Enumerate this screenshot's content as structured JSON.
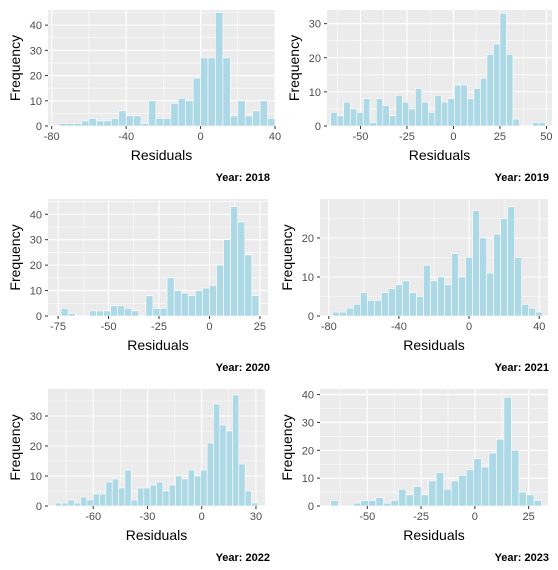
{
  "chart_data": [
    {
      "type": "bar",
      "caption": "Year: 2018",
      "xlabel": "Residuals",
      "ylabel": "Frequency",
      "xlim": [
        -82,
        40
      ],
      "ylim": [
        0,
        46
      ],
      "xticks": [
        -80,
        -40,
        0,
        40
      ],
      "yticks": [
        0,
        10,
        20,
        30,
        40
      ],
      "bin_width": 4,
      "bins_start": [
        -80,
        -76,
        -72,
        -68,
        -64,
        -60,
        -56,
        -52,
        -48,
        -44,
        -40,
        -36,
        -32,
        -28,
        -24,
        -20,
        -16,
        -12,
        -8,
        -4,
        0,
        4,
        8,
        12,
        16,
        20,
        24,
        28,
        32,
        36
      ],
      "values": [
        0,
        1,
        1,
        1,
        2,
        3,
        2,
        2,
        3,
        6,
        4,
        4,
        1,
        10,
        3,
        3,
        9,
        11,
        10,
        19,
        27,
        27,
        45,
        27,
        4,
        10,
        4,
        6,
        10,
        3
      ]
    },
    {
      "type": "bar",
      "caption": "Year: 2019",
      "xlabel": "Residuals",
      "ylabel": "Frequency",
      "xlim": [
        -68,
        53
      ],
      "ylim": [
        0,
        34
      ],
      "xticks": [
        -50,
        -25,
        0,
        25,
        50
      ],
      "yticks": [
        0,
        10,
        20,
        30
      ],
      "bin_width": 3.5,
      "bins_start": [
        -66,
        -62.5,
        -59,
        -55.5,
        -52,
        -48.5,
        -45,
        -41.5,
        -38,
        -34.5,
        -31,
        -27.5,
        -24,
        -20.5,
        -17,
        -13.5,
        -10,
        -6.5,
        -3,
        0.5,
        4,
        7.5,
        11,
        14.5,
        18,
        21.5,
        25,
        28.5,
        32,
        35.5,
        39,
        42.5,
        46
      ],
      "values": [
        4,
        3,
        7,
        5,
        4,
        8,
        1,
        8,
        6,
        3,
        9,
        7,
        5,
        11,
        7,
        4,
        9,
        7,
        8,
        12,
        12,
        8,
        11,
        14,
        21,
        24,
        33,
        21,
        2,
        0,
        0,
        1,
        1
      ]
    },
    {
      "type": "bar",
      "caption": "Year: 2020",
      "xlabel": "Residuals",
      "ylabel": "Frequency",
      "xlim": [
        -80,
        29
      ],
      "ylim": [
        0,
        46
      ],
      "xticks": [
        -75,
        -50,
        -25,
        0,
        25
      ],
      "yticks": [
        0,
        10,
        20,
        30,
        40
      ],
      "bin_width": 3.5,
      "bins_start": [
        -77,
        -73.5,
        -70,
        -66.5,
        -63,
        -59.5,
        -56,
        -52.5,
        -49,
        -45.5,
        -42,
        -38.5,
        -35,
        -31.5,
        -28,
        -24.5,
        -21,
        -17.5,
        -14,
        -10.5,
        -7,
        -3.5,
        0,
        3.5,
        7,
        10.5,
        14,
        17.5,
        21,
        24.5
      ],
      "values": [
        0,
        3,
        1,
        0,
        0,
        2,
        2,
        2,
        4,
        4,
        3,
        2,
        0,
        8,
        3,
        3,
        15,
        10,
        9,
        8,
        10,
        11,
        12,
        20,
        30,
        43,
        37,
        24,
        8,
        0
      ]
    },
    {
      "type": "bar",
      "caption": "Year: 2021",
      "xlabel": "Residuals",
      "ylabel": "Frequency",
      "xlim": [
        -85,
        45
      ],
      "ylim": [
        0,
        30
      ],
      "xticks": [
        -80,
        -40,
        0,
        40
      ],
      "yticks": [
        0,
        10,
        20
      ],
      "bin_width": 4,
      "bins_start": [
        -82,
        -78,
        -74,
        -70,
        -66,
        -62,
        -58,
        -54,
        -50,
        -46,
        -42,
        -38,
        -34,
        -30,
        -26,
        -22,
        -18,
        -14,
        -10,
        -6,
        -2,
        2,
        6,
        10,
        14,
        18,
        22,
        26,
        30,
        34,
        38
      ],
      "values": [
        0,
        1,
        1,
        2,
        3,
        6,
        4,
        4,
        6,
        7,
        8,
        9,
        6,
        5,
        13,
        9,
        10,
        8,
        16,
        10,
        15,
        27,
        20,
        11,
        21,
        25,
        28,
        15,
        3,
        2,
        1
      ]
    },
    {
      "type": "bar",
      "caption": "Year: 2022",
      "xlabel": "Residuals",
      "ylabel": "Frequency",
      "xlim": [
        -85,
        35
      ],
      "ylim": [
        0,
        39
      ],
      "xticks": [
        -60,
        -30,
        0,
        30
      ],
      "yticks": [
        0,
        10,
        20,
        30
      ],
      "bin_width": 3.5,
      "bins_start": [
        -81,
        -77.5,
        -74,
        -70.5,
        -67,
        -63.5,
        -60,
        -56.5,
        -53,
        -49.5,
        -46,
        -42.5,
        -39,
        -35.5,
        -32,
        -28.5,
        -25,
        -21.5,
        -18,
        -14.5,
        -11,
        -7.5,
        -4,
        -0.5,
        3,
        6.5,
        10,
        13.5,
        17,
        20.5,
        24,
        27.5
      ],
      "values": [
        1,
        1,
        2,
        1,
        3,
        2,
        4,
        4,
        8,
        9,
        6,
        12,
        2,
        6,
        6,
        7,
        8,
        5,
        7,
        10,
        9,
        12,
        10,
        12,
        21,
        34,
        27,
        25,
        37,
        14,
        5,
        1
      ]
    },
    {
      "type": "bar",
      "caption": "Year: 2023",
      "xlabel": "Residuals",
      "ylabel": "Frequency",
      "xlim": [
        -72,
        34
      ],
      "ylim": [
        0,
        42
      ],
      "xticks": [
        -50,
        -25,
        0,
        25
      ],
      "yticks": [
        0,
        10,
        20,
        30,
        40
      ],
      "bin_width": 3.5,
      "bins_start": [
        -67,
        -63.5,
        -60,
        -56.5,
        -53,
        -49.5,
        -46,
        -42.5,
        -39,
        -35.5,
        -32,
        -28.5,
        -25,
        -21.5,
        -18,
        -14.5,
        -11,
        -7.5,
        -4,
        -0.5,
        3,
        6.5,
        10,
        13.5,
        17,
        20.5,
        24,
        27.5
      ],
      "values": [
        2,
        0,
        0,
        1,
        2,
        2,
        3,
        1,
        2,
        6,
        4,
        7,
        4,
        9,
        12,
        6,
        9,
        11,
        13,
        17,
        14,
        19,
        24,
        39,
        20,
        5,
        4,
        2
      ]
    }
  ]
}
